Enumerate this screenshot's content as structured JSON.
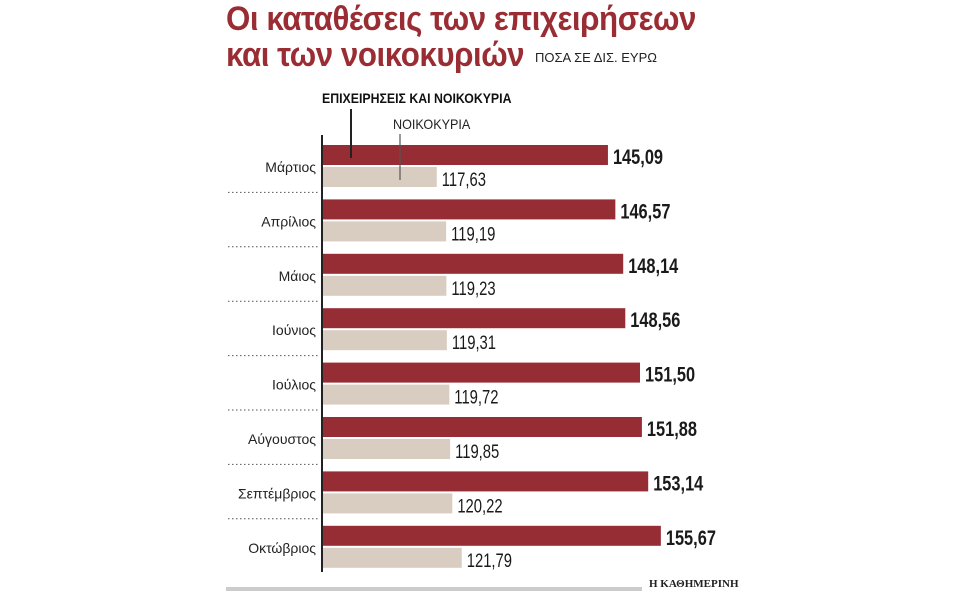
{
  "chart_data": {
    "type": "bar",
    "orientation": "horizontal",
    "title": "Οι καταθέσεις των επιχειρήσεων και των νοικοκυριών",
    "subtitle": "ΠΟΣΑ ΣΕ ΔΙΣ. ΕΥΡΩ",
    "categories": [
      "Μάρτιος",
      "Απρίλιος",
      "Μάιος",
      "Ιούνιος",
      "Ιούλιος",
      "Αύγουστος",
      "Σεπτέμβριος",
      "Οκτώβριος"
    ],
    "series": [
      {
        "name": "ΕΠΙΧΕΙΡΗΣΕΙΣ ΚΑΙ ΝΟΙΚΟΚΥΡΙΑ",
        "color": "#962d35",
        "values": [
          145.09,
          146.57,
          148.14,
          148.56,
          151.5,
          151.88,
          153.14,
          155.67
        ],
        "labels": [
          "145,09",
          "146,57",
          "148,14",
          "148,56",
          "151,50",
          "151,88",
          "153,14",
          "155,67"
        ]
      },
      {
        "name": "ΝΟΙΚΟΚΥΡΙΑ",
        "color": "#d9cdc1",
        "values": [
          117.63,
          119.19,
          119.23,
          119.31,
          119.72,
          119.85,
          120.22,
          121.79
        ],
        "labels": [
          "117,63",
          "119,19",
          "119,23",
          "119,31",
          "119,72",
          "119,85",
          "120,22",
          "121,79"
        ]
      }
    ],
    "legend": "top-left",
    "grid": false
  },
  "title_line1": "Οι καταθέσεις των επιχειρήσεων",
  "title_line2": "και των νοικοκυριών",
  "source": "Η ΚΑΘΗΜΕΡΙΝΗ"
}
